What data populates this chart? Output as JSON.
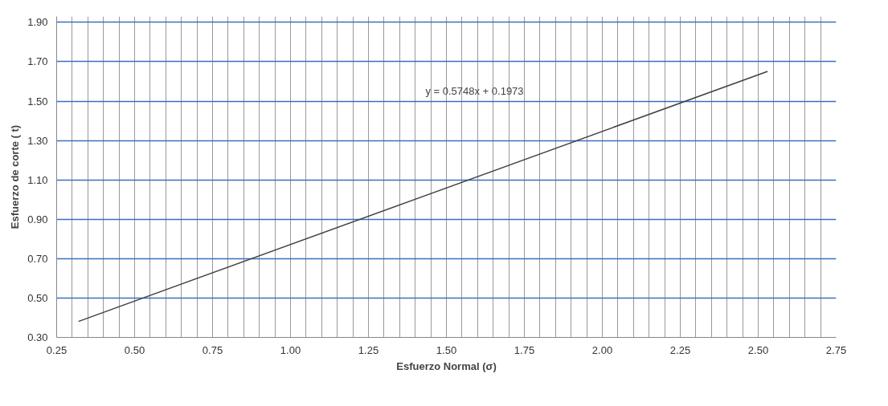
{
  "chart_data": {
    "type": "line",
    "xlabel": "Esfuerzo Normal (σ)",
    "ylabel": "Esfuerzo de corte ( t)",
    "annotations": [
      "y = 0.5748x + 0.1973"
    ],
    "series": [
      {
        "color": "#404040",
        "x": [
          0.32,
          2.53
        ],
        "values": [
          0.381,
          1.651
        ]
      }
    ],
    "xlim": [
      0.25,
      2.75
    ],
    "ylim": [
      0.3,
      1.93
    ],
    "xticks": [
      {
        "value": 0.25,
        "label": "0.25"
      },
      {
        "value": 0.3,
        "label": null
      },
      {
        "value": 0.35,
        "label": null
      },
      {
        "value": 0.4,
        "label": null
      },
      {
        "value": 0.45,
        "label": null
      },
      {
        "value": 0.5,
        "label": "0.50"
      },
      {
        "value": 0.55,
        "label": null
      },
      {
        "value": 0.6,
        "label": null
      },
      {
        "value": 0.65,
        "label": null
      },
      {
        "value": 0.7,
        "label": null
      },
      {
        "value": 0.75,
        "label": "0.75"
      },
      {
        "value": 0.8,
        "label": null
      },
      {
        "value": 0.85,
        "label": null
      },
      {
        "value": 0.9,
        "label": null
      },
      {
        "value": 0.95,
        "label": null
      },
      {
        "value": 1.0,
        "label": "1.00"
      },
      {
        "value": 1.05,
        "label": null
      },
      {
        "value": 1.1,
        "label": null
      },
      {
        "value": 1.15,
        "label": null
      },
      {
        "value": 1.2,
        "label": null
      },
      {
        "value": 1.25,
        "label": "1.25"
      },
      {
        "value": 1.3,
        "label": null
      },
      {
        "value": 1.35,
        "label": null
      },
      {
        "value": 1.4,
        "label": null
      },
      {
        "value": 1.45,
        "label": null
      },
      {
        "value": 1.5,
        "label": "1.50"
      },
      {
        "value": 1.55,
        "label": null
      },
      {
        "value": 1.6,
        "label": null
      },
      {
        "value": 1.65,
        "label": null
      },
      {
        "value": 1.7,
        "label": null
      },
      {
        "value": 1.75,
        "label": "1.75"
      },
      {
        "value": 1.8,
        "label": null
      },
      {
        "value": 1.85,
        "label": null
      },
      {
        "value": 1.9,
        "label": null
      },
      {
        "value": 1.95,
        "label": null
      },
      {
        "value": 2.0,
        "label": "2.00"
      },
      {
        "value": 2.05,
        "label": null
      },
      {
        "value": 2.1,
        "label": null
      },
      {
        "value": 2.15,
        "label": null
      },
      {
        "value": 2.2,
        "label": null
      },
      {
        "value": 2.25,
        "label": "2.25"
      },
      {
        "value": 2.3,
        "label": null
      },
      {
        "value": 2.35,
        "label": null
      },
      {
        "value": 2.4,
        "label": null
      },
      {
        "value": 2.45,
        "label": null
      },
      {
        "value": 2.5,
        "label": "2.50"
      },
      {
        "value": 2.55,
        "label": null
      },
      {
        "value": 2.6,
        "label": null
      },
      {
        "value": 2.65,
        "label": null
      },
      {
        "value": 2.7,
        "label": null
      },
      {
        "value": 2.75,
        "label": "2.75"
      }
    ],
    "yticks": [
      {
        "value": 0.3,
        "label": "0.30"
      },
      {
        "value": 0.5,
        "label": "0.50"
      },
      {
        "value": 0.7,
        "label": "0.70"
      },
      {
        "value": 0.9,
        "label": "0.90"
      },
      {
        "value": 1.1,
        "label": "1.10"
      },
      {
        "value": 1.3,
        "label": "1.30"
      },
      {
        "value": 1.5,
        "label": "1.50"
      },
      {
        "value": 1.7,
        "label": "1.70"
      },
      {
        "value": 1.9,
        "label": "1.90"
      }
    ],
    "grid": true,
    "marker": "none",
    "line_style": "solid"
  }
}
